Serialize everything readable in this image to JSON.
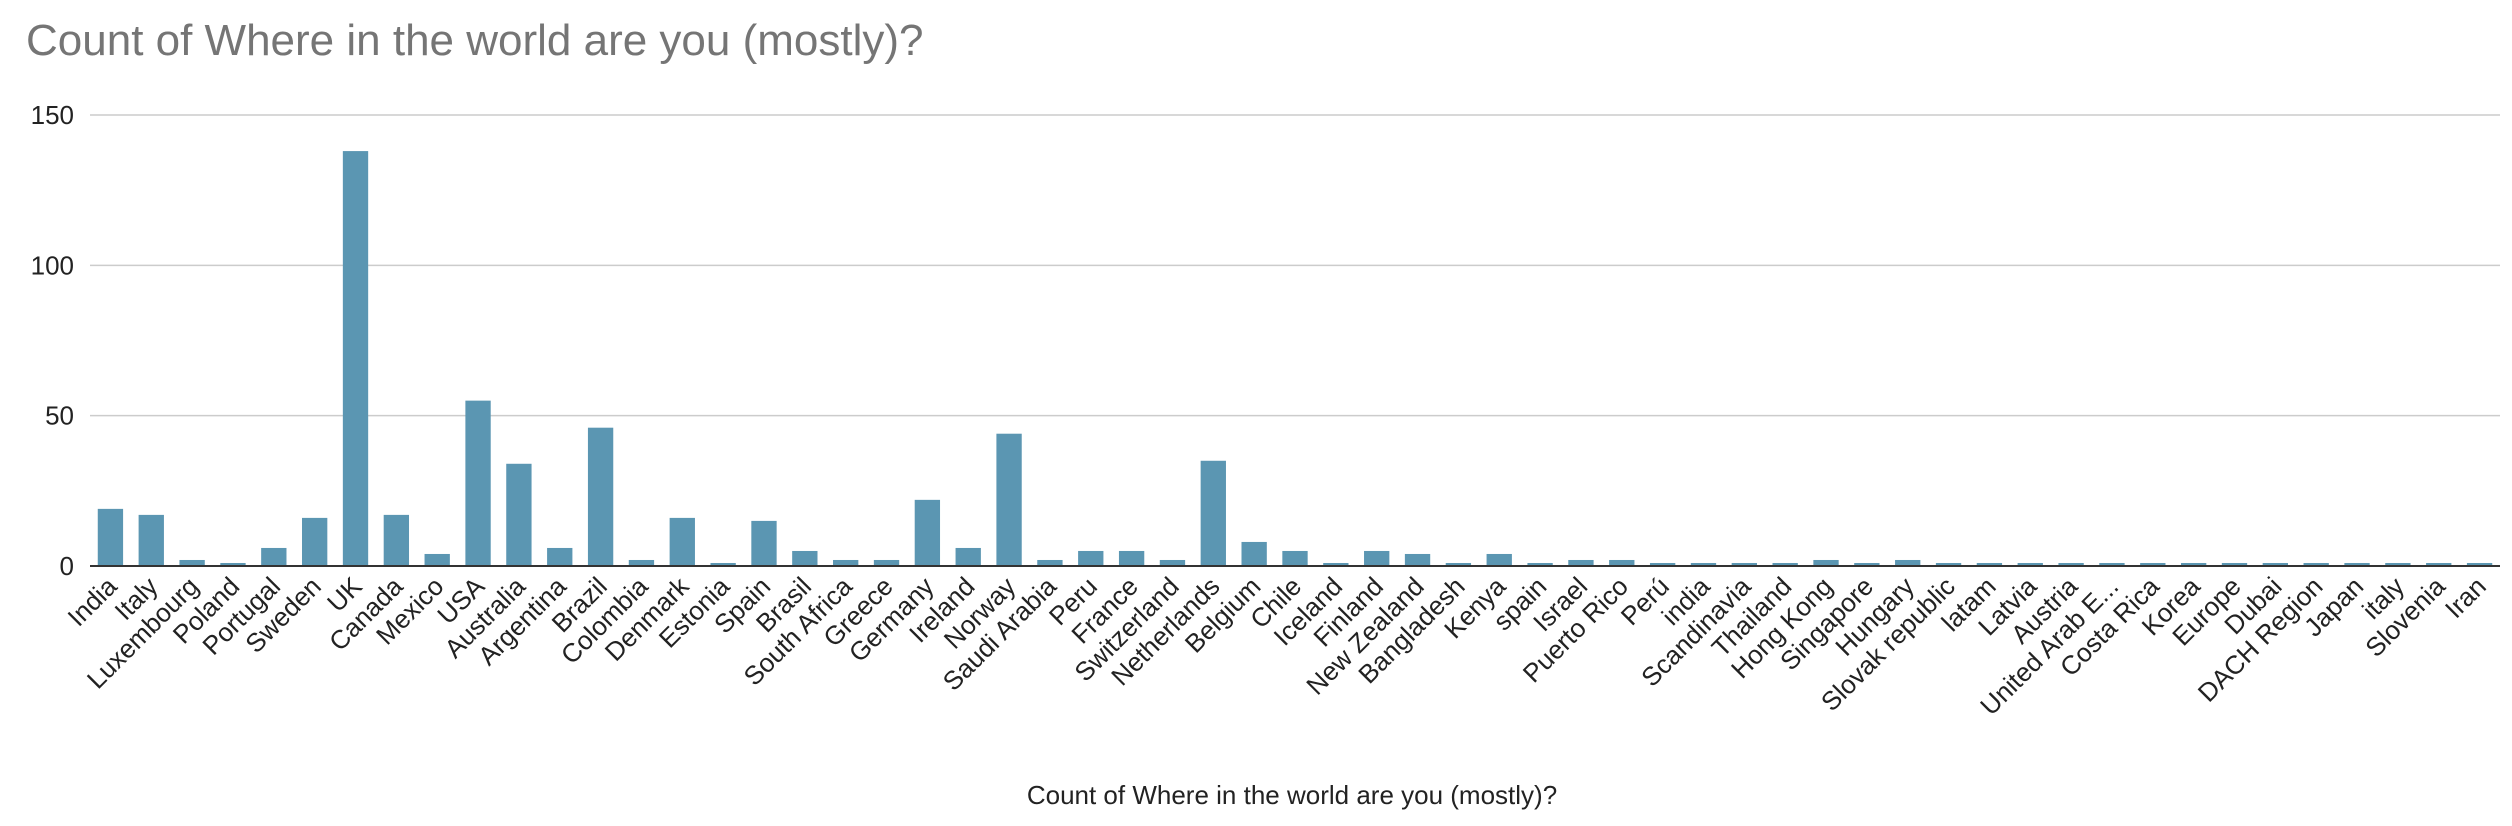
{
  "chart_data": {
    "type": "bar",
    "title": "Count of Where in the world are you (mostly)?",
    "xlabel": "Count of Where in the world are you (mostly)?",
    "ylabel": "",
    "ylim": [
      0,
      150
    ],
    "yticks": [
      "0",
      "50",
      "100",
      "150"
    ],
    "grid": true,
    "legend": "none",
    "bar_color": "#5b96b2",
    "categories": [
      "India",
      "Italy",
      "Luxembourg",
      "Poland",
      "Portugal",
      "Sweden",
      "UK",
      "Canada",
      "Mexico",
      "USA",
      "Australia",
      "Argentina",
      "Brazil",
      "Colombia",
      "Denmark",
      "Estonia",
      "Spain",
      "Brasil",
      "South Africa",
      "Greece",
      "Germany",
      "Ireland",
      "Norway",
      "Saudi Arabia",
      "Peru",
      "France",
      "Switzerland",
      "Netherlands",
      "Belgium",
      "Chile",
      "Iceland",
      "Finland",
      "New Zealand",
      "Bangladesh",
      "Kenya",
      "spain",
      "Israel",
      "Puerto Rico",
      "Perú",
      "india",
      "Scandinavia",
      "Thailand",
      "Hong Kong",
      "Singapore",
      "Hungary",
      "Slovak republic",
      "latam",
      "Latvia",
      "Austria",
      "United Arab E...",
      "Costa Rica",
      "Korea",
      "Europe",
      "Dubai",
      "DACH Region",
      "Japan",
      "italy",
      "Slovenia",
      "Iran"
    ],
    "values": [
      19,
      17,
      2,
      1,
      6,
      16,
      138,
      17,
      4,
      55,
      34,
      6,
      46,
      2,
      16,
      1,
      15,
      5,
      2,
      2,
      22,
      6,
      44,
      2,
      5,
      5,
      2,
      35,
      8,
      5,
      1,
      5,
      4,
      1,
      4,
      1,
      2,
      2,
      1,
      1,
      1,
      1,
      2,
      1,
      2,
      1,
      1,
      1,
      1,
      1,
      1,
      1,
      1,
      1,
      1,
      1,
      1,
      1,
      1
    ]
  }
}
